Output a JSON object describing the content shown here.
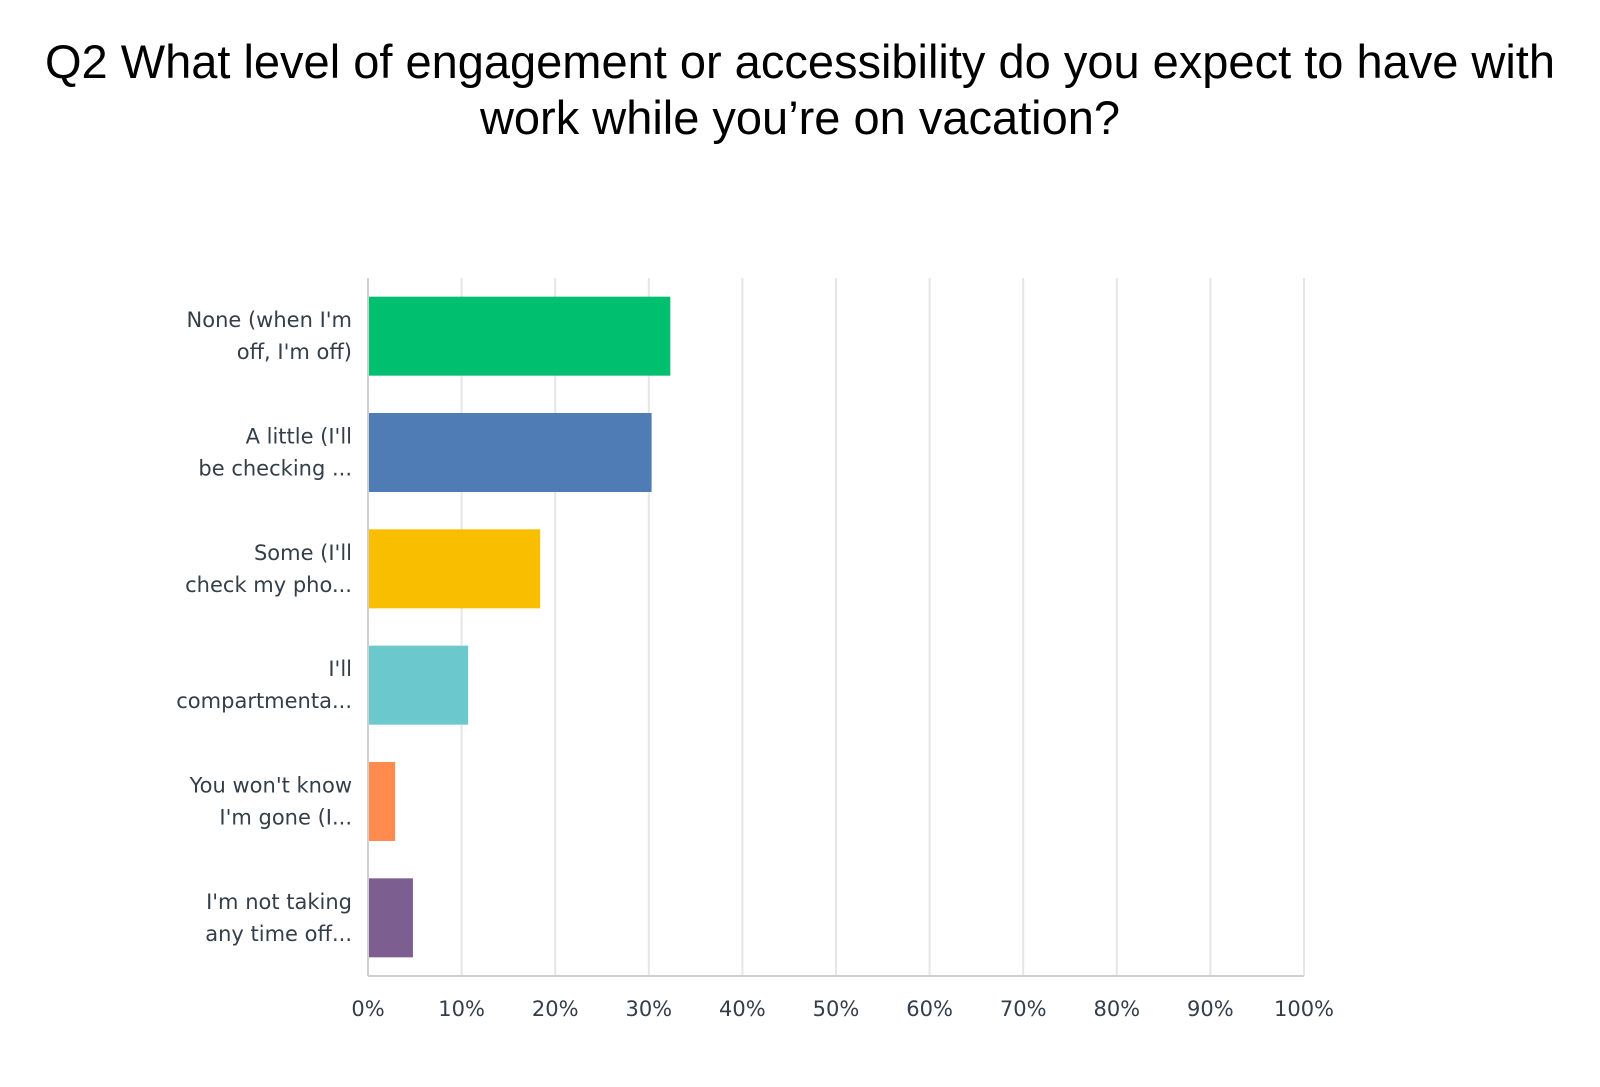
{
  "chart_data": {
    "type": "bar",
    "orientation": "horizontal",
    "title_lines": [
      "Q2 What level of engagement or accessibility do you expect to have with",
      "work while you’re on vacation?"
    ],
    "categories": [
      [
        "None (when I'm",
        "off, I'm off)"
      ],
      [
        "A little (I'll",
        "be checking ..."
      ],
      [
        "Some (I'll",
        "check my pho..."
      ],
      [
        "I'll",
        "compartmenta..."
      ],
      [
        "You won't know",
        "I'm gone (I..."
      ],
      [
        "I'm not taking",
        "any time off..."
      ]
    ],
    "values": [
      32.3,
      30.3,
      18.4,
      10.7,
      2.9,
      4.8
    ],
    "colors": [
      "#00bf6f",
      "#507cb6",
      "#f9be00",
      "#6bc8cd",
      "#ff8b4f",
      "#7d5e90"
    ],
    "xlim": [
      0,
      100
    ],
    "x_ticks": [
      "0%",
      "10%",
      "20%",
      "30%",
      "40%",
      "50%",
      "60%",
      "70%",
      "80%",
      "90%",
      "100%"
    ],
    "grid": true,
    "xlabel": "",
    "ylabel": ""
  }
}
